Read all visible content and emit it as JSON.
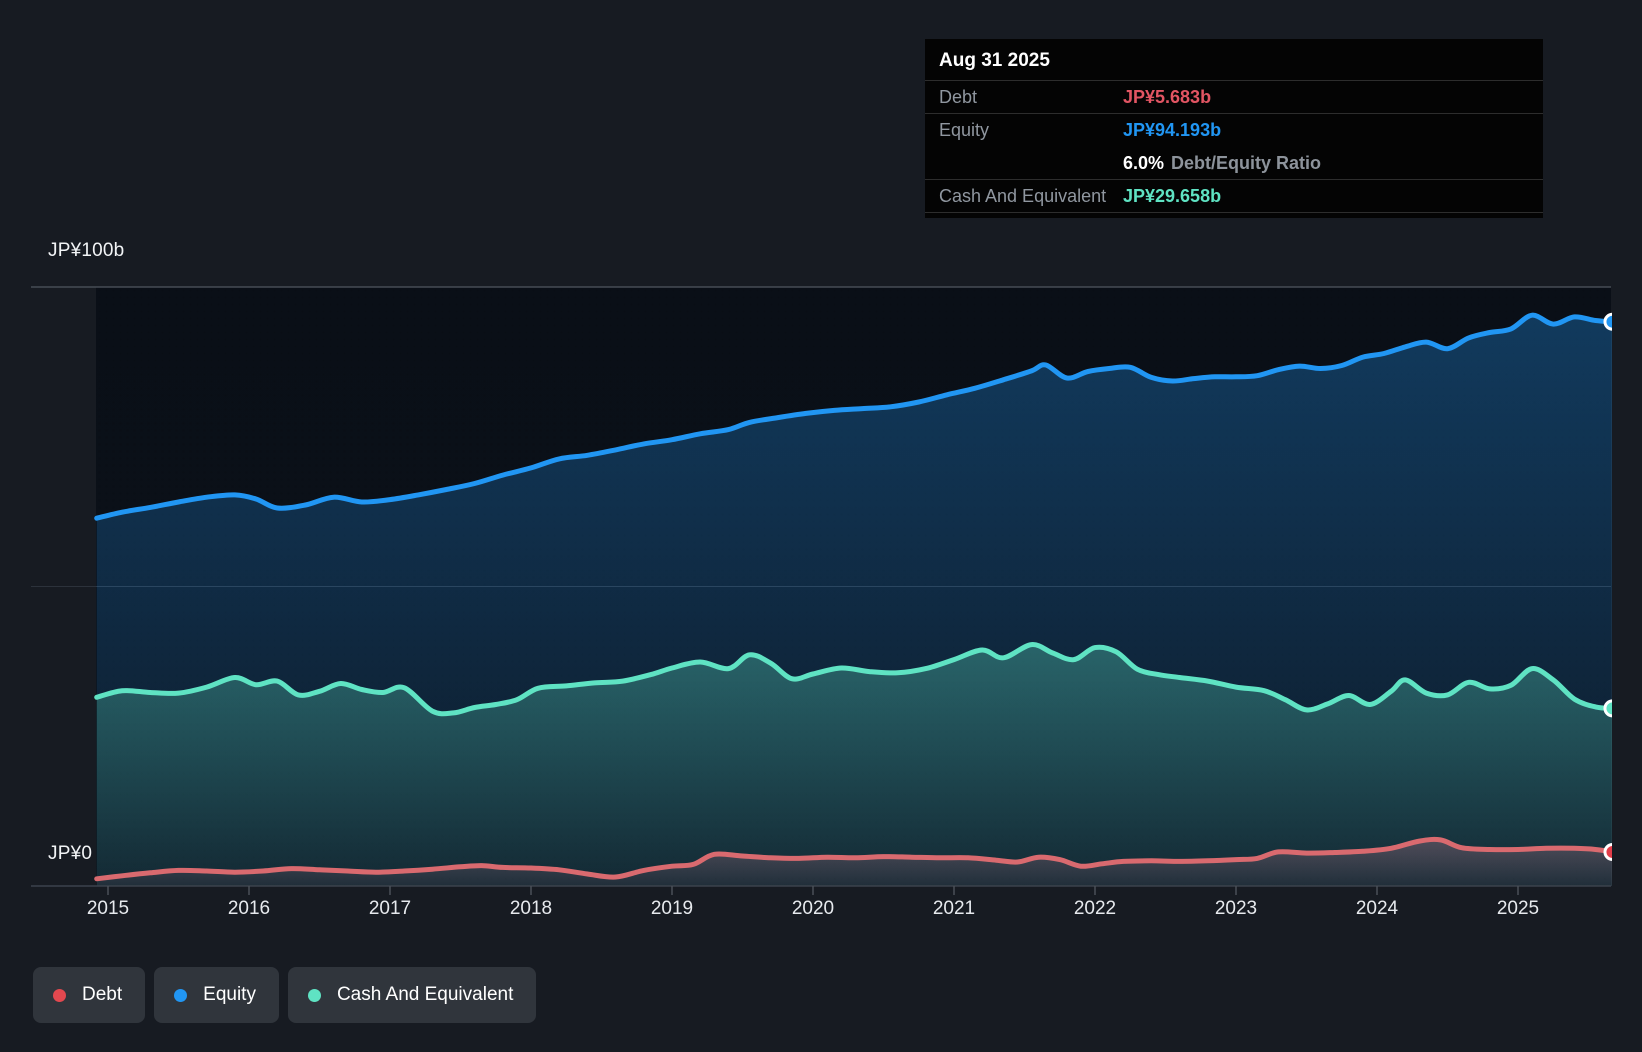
{
  "tooltip": {
    "date": "Aug 31 2025",
    "debt_label": "Debt",
    "debt_value": "JP¥5.683b",
    "equity_label": "Equity",
    "equity_value": "JP¥94.193b",
    "ratio_value": "6.0%",
    "ratio_label": "Debt/Equity Ratio",
    "cash_label": "Cash And Equivalent",
    "cash_value": "JP¥29.658b"
  },
  "colors": {
    "debt": "#e25563",
    "equity": "#2196f3",
    "cash": "#5fe3c3",
    "ratio": "#ffffff",
    "tooltip_label": "#9097a0"
  },
  "y_axis": {
    "top_label": "JP¥100b",
    "zero_label": "JP¥0"
  },
  "legend": [
    {
      "label": "Debt",
      "color": "#e2484f"
    },
    {
      "label": "Equity",
      "color": "#2196f3"
    },
    {
      "label": "Cash And Equivalent",
      "color": "#5fe3c3"
    }
  ],
  "chart_data": {
    "type": "area",
    "title": "",
    "xlabel": "",
    "ylabel": "JP¥ billions",
    "x_tick_years": [
      "2015",
      "2016",
      "2017",
      "2018",
      "2019",
      "2020",
      "2021",
      "2022",
      "2023",
      "2024",
      "2025"
    ],
    "x_range": [
      2014.92,
      2025.67
    ],
    "ylim": [
      0,
      100
    ],
    "y_gridlines": [
      0,
      50,
      100
    ],
    "grid": true,
    "legend_position": "bottom-left",
    "last_point_date": "Aug 31 2025",
    "series": [
      {
        "name": "Equity",
        "color": "#2196f3",
        "fill_color": "#2196f3",
        "marker_color": "#2196f3",
        "points": [
          [
            2014.92,
            61.4
          ],
          [
            2015.1,
            62.4
          ],
          [
            2015.3,
            63.2
          ],
          [
            2015.5,
            64.1
          ],
          [
            2015.7,
            64.9
          ],
          [
            2015.9,
            65.3
          ],
          [
            2016.05,
            64.6
          ],
          [
            2016.2,
            63.1
          ],
          [
            2016.4,
            63.6
          ],
          [
            2016.6,
            64.9
          ],
          [
            2016.8,
            64.1
          ],
          [
            2017.0,
            64.5
          ],
          [
            2017.2,
            65.3
          ],
          [
            2017.4,
            66.2
          ],
          [
            2017.6,
            67.2
          ],
          [
            2017.8,
            68.6
          ],
          [
            2018.0,
            69.8
          ],
          [
            2018.2,
            71.3
          ],
          [
            2018.4,
            71.9
          ],
          [
            2018.6,
            72.8
          ],
          [
            2018.8,
            73.8
          ],
          [
            2019.0,
            74.5
          ],
          [
            2019.2,
            75.5
          ],
          [
            2019.4,
            76.2
          ],
          [
            2019.55,
            77.4
          ],
          [
            2019.75,
            78.2
          ],
          [
            2019.95,
            78.9
          ],
          [
            2020.15,
            79.4
          ],
          [
            2020.35,
            79.7
          ],
          [
            2020.55,
            80.0
          ],
          [
            2020.75,
            80.8
          ],
          [
            2020.95,
            82.0
          ],
          [
            2021.15,
            83.1
          ],
          [
            2021.35,
            84.5
          ],
          [
            2021.55,
            86.0
          ],
          [
            2021.65,
            87.0
          ],
          [
            2021.8,
            84.8
          ],
          [
            2021.95,
            85.9
          ],
          [
            2022.1,
            86.4
          ],
          [
            2022.25,
            86.6
          ],
          [
            2022.4,
            84.9
          ],
          [
            2022.55,
            84.3
          ],
          [
            2022.7,
            84.7
          ],
          [
            2022.85,
            85.0
          ],
          [
            2023.0,
            85.0
          ],
          [
            2023.15,
            85.2
          ],
          [
            2023.3,
            86.2
          ],
          [
            2023.45,
            86.8
          ],
          [
            2023.6,
            86.4
          ],
          [
            2023.75,
            86.9
          ],
          [
            2023.9,
            88.3
          ],
          [
            2024.05,
            88.9
          ],
          [
            2024.2,
            90.0
          ],
          [
            2024.35,
            90.8
          ],
          [
            2024.5,
            89.7
          ],
          [
            2024.65,
            91.5
          ],
          [
            2024.8,
            92.4
          ],
          [
            2024.95,
            93.0
          ],
          [
            2025.1,
            95.3
          ],
          [
            2025.25,
            93.8
          ],
          [
            2025.4,
            95.0
          ],
          [
            2025.55,
            94.4
          ],
          [
            2025.67,
            94.193
          ]
        ]
      },
      {
        "name": "Cash And Equivalent",
        "color": "#5fe3c3",
        "fill_color": "#5fe3c3",
        "marker_color": "#5fe3c3",
        "points": [
          [
            2014.92,
            31.5
          ],
          [
            2015.1,
            32.6
          ],
          [
            2015.3,
            32.3
          ],
          [
            2015.5,
            32.2
          ],
          [
            2015.7,
            33.2
          ],
          [
            2015.9,
            34.8
          ],
          [
            2016.05,
            33.6
          ],
          [
            2016.2,
            34.2
          ],
          [
            2016.35,
            31.9
          ],
          [
            2016.5,
            32.5
          ],
          [
            2016.65,
            33.8
          ],
          [
            2016.8,
            32.8
          ],
          [
            2016.95,
            32.3
          ],
          [
            2017.1,
            33.1
          ],
          [
            2017.3,
            29.2
          ],
          [
            2017.45,
            28.9
          ],
          [
            2017.6,
            29.8
          ],
          [
            2017.75,
            30.3
          ],
          [
            2017.9,
            31.1
          ],
          [
            2018.05,
            33.0
          ],
          [
            2018.25,
            33.4
          ],
          [
            2018.45,
            33.9
          ],
          [
            2018.65,
            34.2
          ],
          [
            2018.85,
            35.3
          ],
          [
            2019.0,
            36.4
          ],
          [
            2019.2,
            37.4
          ],
          [
            2019.4,
            36.3
          ],
          [
            2019.55,
            38.6
          ],
          [
            2019.7,
            37.2
          ],
          [
            2019.85,
            34.6
          ],
          [
            2020.0,
            35.4
          ],
          [
            2020.2,
            36.4
          ],
          [
            2020.4,
            35.8
          ],
          [
            2020.6,
            35.6
          ],
          [
            2020.8,
            36.3
          ],
          [
            2021.0,
            37.8
          ],
          [
            2021.2,
            39.4
          ],
          [
            2021.35,
            38.1
          ],
          [
            2021.55,
            40.3
          ],
          [
            2021.7,
            38.9
          ],
          [
            2021.85,
            37.8
          ],
          [
            2022.0,
            39.8
          ],
          [
            2022.15,
            39.1
          ],
          [
            2022.3,
            36.2
          ],
          [
            2022.45,
            35.3
          ],
          [
            2022.6,
            34.8
          ],
          [
            2022.8,
            34.2
          ],
          [
            2023.0,
            33.2
          ],
          [
            2023.2,
            32.6
          ],
          [
            2023.35,
            31.1
          ],
          [
            2023.5,
            29.4
          ],
          [
            2023.65,
            30.4
          ],
          [
            2023.8,
            31.8
          ],
          [
            2023.95,
            30.3
          ],
          [
            2024.1,
            32.5
          ],
          [
            2024.2,
            34.4
          ],
          [
            2024.35,
            32.2
          ],
          [
            2024.5,
            31.9
          ],
          [
            2024.65,
            34.0
          ],
          [
            2024.8,
            32.9
          ],
          [
            2024.95,
            33.5
          ],
          [
            2025.1,
            36.3
          ],
          [
            2025.25,
            34.4
          ],
          [
            2025.4,
            31.2
          ],
          [
            2025.55,
            29.9
          ],
          [
            2025.67,
            29.658
          ]
        ]
      },
      {
        "name": "Debt",
        "color": "#d96a6f",
        "fill_color": "#c97f93",
        "marker_color": "#e23d49",
        "points": [
          [
            2014.92,
            1.2
          ],
          [
            2015.1,
            1.7
          ],
          [
            2015.3,
            2.2
          ],
          [
            2015.5,
            2.6
          ],
          [
            2015.7,
            2.5
          ],
          [
            2015.9,
            2.3
          ],
          [
            2016.1,
            2.5
          ],
          [
            2016.3,
            2.9
          ],
          [
            2016.5,
            2.7
          ],
          [
            2016.7,
            2.5
          ],
          [
            2016.9,
            2.3
          ],
          [
            2017.1,
            2.5
          ],
          [
            2017.3,
            2.8
          ],
          [
            2017.5,
            3.2
          ],
          [
            2017.65,
            3.4
          ],
          [
            2017.8,
            3.1
          ],
          [
            2018.0,
            3.0
          ],
          [
            2018.2,
            2.7
          ],
          [
            2018.4,
            2.0
          ],
          [
            2018.6,
            1.5
          ],
          [
            2018.8,
            2.6
          ],
          [
            2019.0,
            3.3
          ],
          [
            2019.15,
            3.6
          ],
          [
            2019.3,
            5.3
          ],
          [
            2019.5,
            5.0
          ],
          [
            2019.7,
            4.7
          ],
          [
            2019.9,
            4.6
          ],
          [
            2020.1,
            4.8
          ],
          [
            2020.3,
            4.7
          ],
          [
            2020.5,
            4.9
          ],
          [
            2020.7,
            4.8
          ],
          [
            2020.9,
            4.7
          ],
          [
            2021.1,
            4.7
          ],
          [
            2021.3,
            4.3
          ],
          [
            2021.45,
            4.0
          ],
          [
            2021.6,
            4.8
          ],
          [
            2021.75,
            4.4
          ],
          [
            2021.9,
            3.3
          ],
          [
            2022.05,
            3.7
          ],
          [
            2022.2,
            4.1
          ],
          [
            2022.4,
            4.2
          ],
          [
            2022.6,
            4.1
          ],
          [
            2022.8,
            4.2
          ],
          [
            2023.0,
            4.4
          ],
          [
            2023.15,
            4.6
          ],
          [
            2023.3,
            5.7
          ],
          [
            2023.5,
            5.5
          ],
          [
            2023.7,
            5.6
          ],
          [
            2023.9,
            5.8
          ],
          [
            2024.1,
            6.3
          ],
          [
            2024.3,
            7.5
          ],
          [
            2024.45,
            7.7
          ],
          [
            2024.6,
            6.4
          ],
          [
            2024.8,
            6.1
          ],
          [
            2025.0,
            6.1
          ],
          [
            2025.2,
            6.3
          ],
          [
            2025.4,
            6.3
          ],
          [
            2025.55,
            6.1
          ],
          [
            2025.67,
            5.683
          ]
        ]
      }
    ]
  }
}
